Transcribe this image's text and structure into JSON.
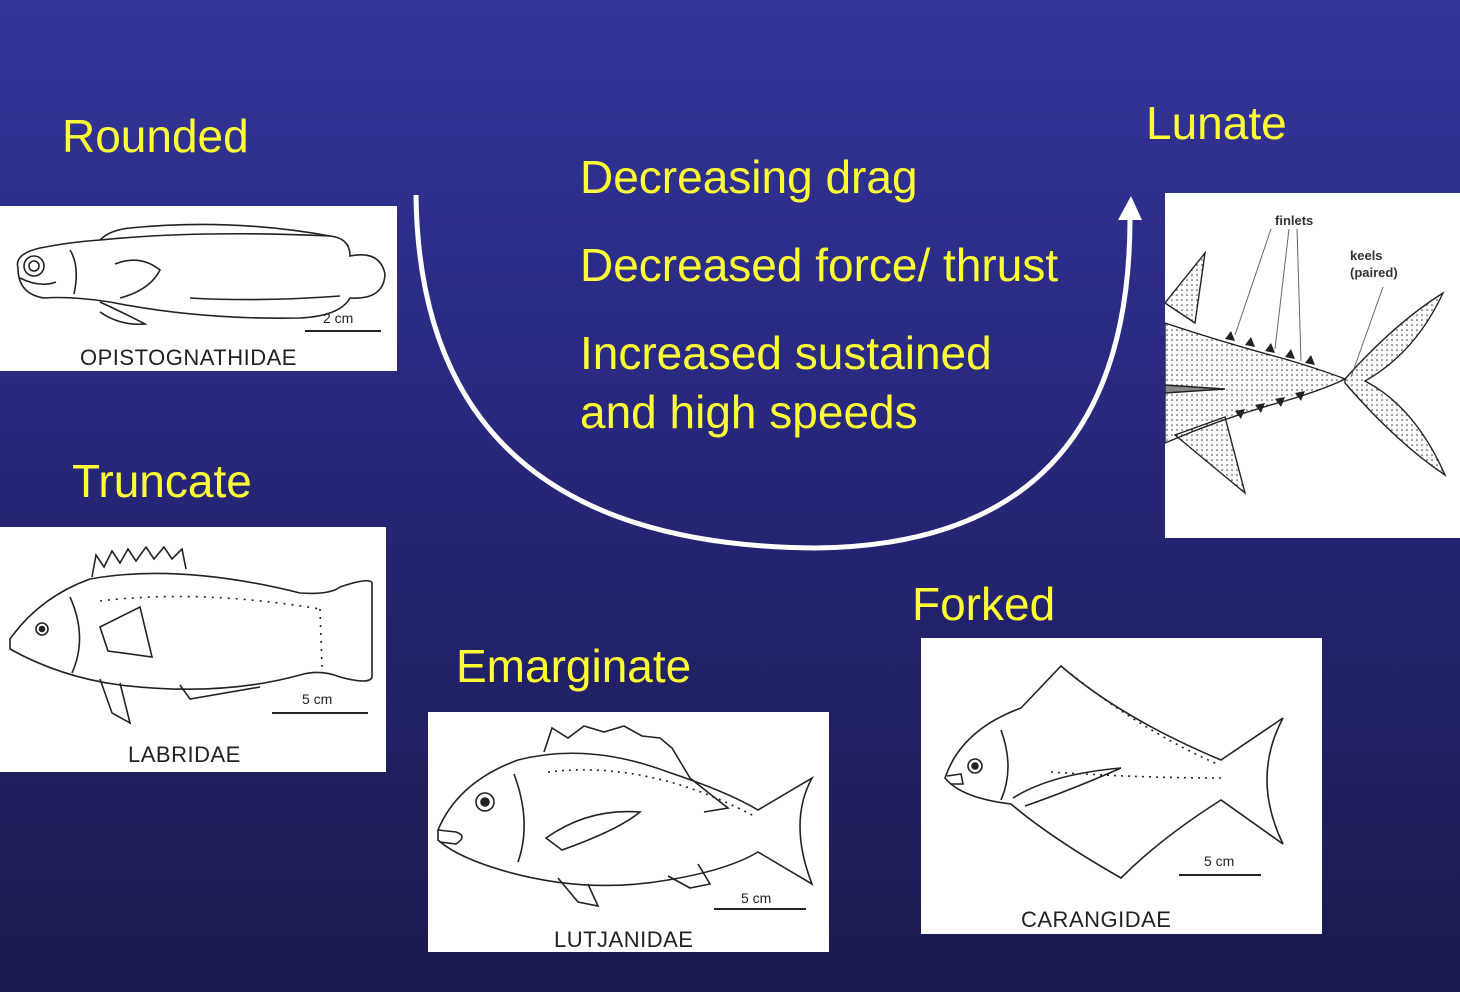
{
  "labels": {
    "rounded": "Rounded",
    "truncate": "Truncate",
    "emarginate": "Emarginate",
    "forked": "Forked",
    "lunate": "Lunate"
  },
  "bullets": {
    "line1": "Decreasing drag",
    "line2": "Decreased force/ thrust",
    "line3a": "Increased sustained",
    "line3b": "and high speeds"
  },
  "panels": {
    "opistognathidae": {
      "caption": "OPISTOGNATHIDAE",
      "scale": "2 cm"
    },
    "labridae": {
      "caption": "LABRIDAE",
      "scale": "5 cm"
    },
    "lutjanidae": {
      "caption": "LUTJANIDAE",
      "scale": "5 cm"
    },
    "carangidae": {
      "caption": "CARANGIDAE",
      "scale": "5 cm"
    },
    "tuna": {
      "finlets": "finlets",
      "keels1": "keels",
      "keels2": "(paired)"
    }
  },
  "colors": {
    "text": "#ffff33",
    "background_top": "#343597",
    "background_bottom": "#1a1a4e",
    "arrow": "#ffffff"
  }
}
